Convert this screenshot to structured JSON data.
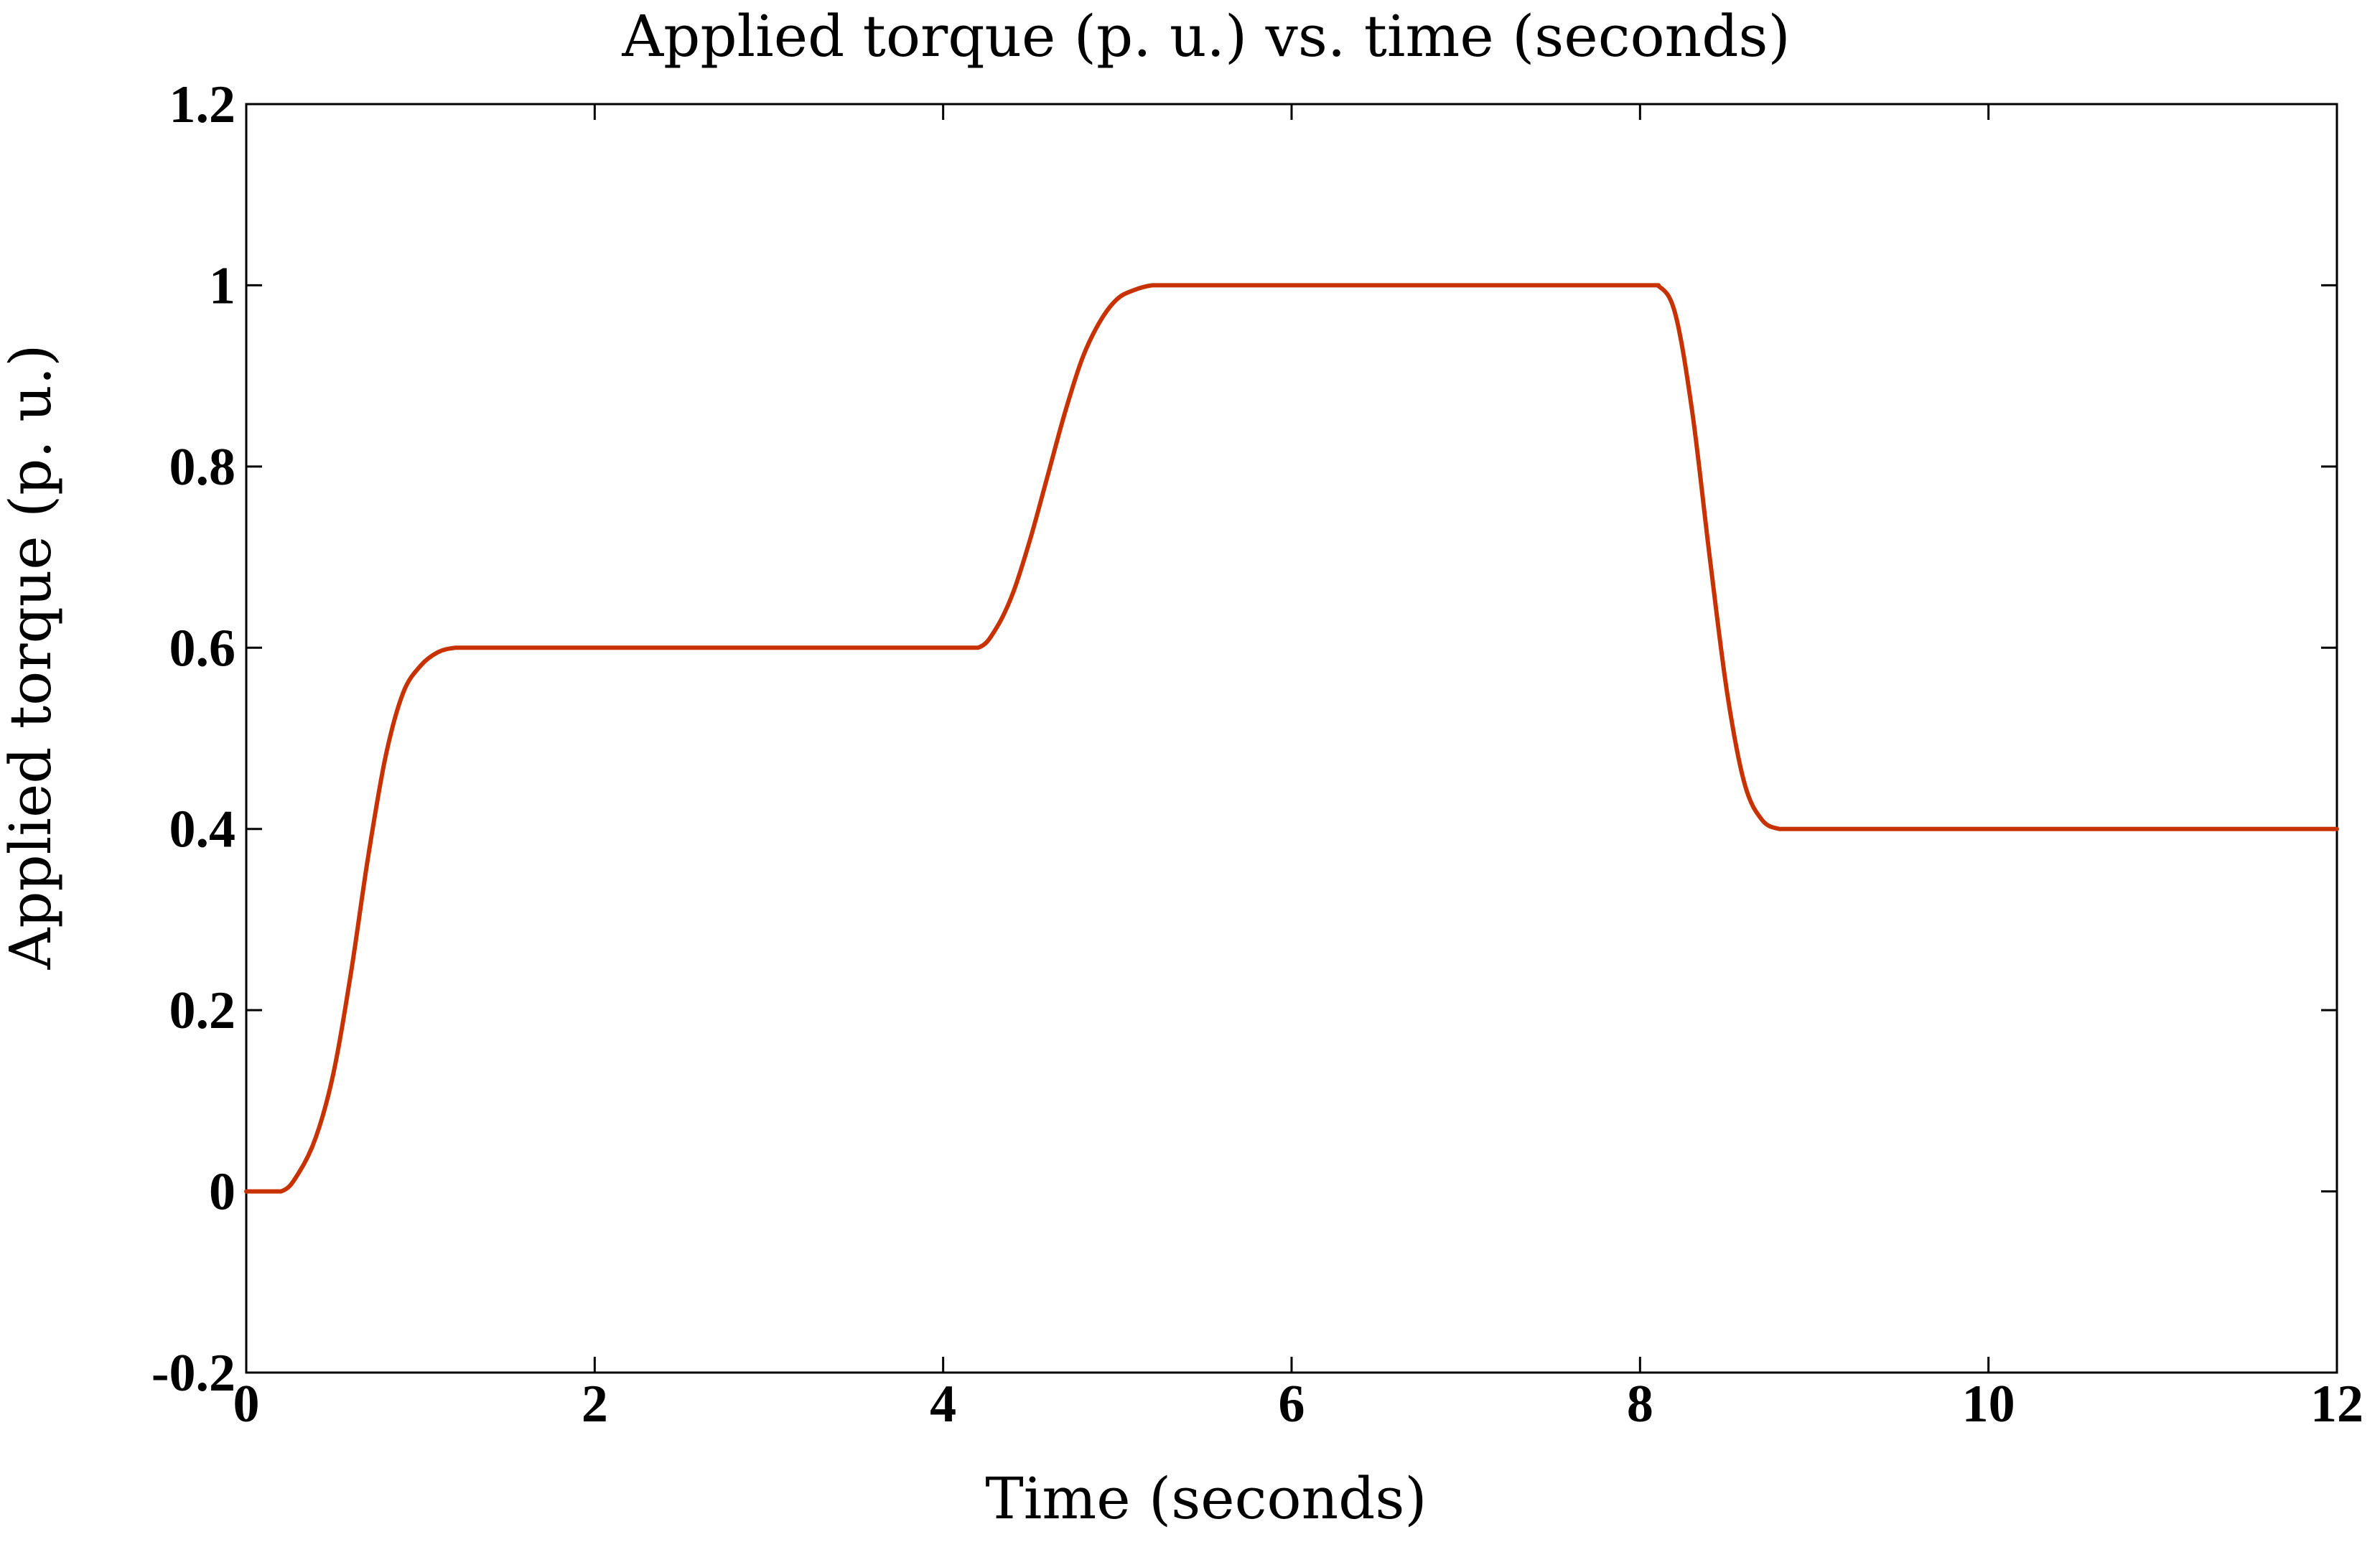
{
  "chart_data": {
    "type": "line",
    "title": "Applied torque (p. u.) vs. time (seconds)",
    "xlabel": "Time (seconds)",
    "ylabel": "Applied torque (p. u.)",
    "xlim": [
      0,
      12
    ],
    "ylim": [
      -0.2,
      1.2
    ],
    "x_ticks": [
      0,
      2,
      4,
      6,
      8,
      10,
      12
    ],
    "x_tick_labels": [
      "0",
      "2",
      "4",
      "6",
      "8",
      "10",
      "12"
    ],
    "y_ticks": [
      -0.2,
      0,
      0.2,
      0.4,
      0.6,
      0.8,
      1,
      1.2
    ],
    "y_tick_labels": [
      "-0.2",
      "0",
      "0.2",
      "0.4",
      "0.6",
      "0.8",
      "1",
      "1.2"
    ],
    "grid": false,
    "legend": "none",
    "line_color": "#c83200",
    "series": [
      {
        "x": [
          0,
          0.2,
          0.3,
          0.4,
          0.5,
          0.6,
          0.7,
          0.8,
          0.9,
          1.0,
          1.1,
          1.2,
          1.3,
          1.4,
          2,
          3,
          4,
          4.2,
          4.3,
          4.4,
          4.5,
          4.6,
          4.7,
          4.8,
          4.9,
          5.0,
          5.1,
          5.2,
          5.3,
          5.5,
          6,
          7,
          8,
          8.1,
          8.2,
          8.3,
          8.4,
          8.5,
          8.6,
          8.7,
          8.8,
          8.9,
          9,
          10,
          11,
          12
        ],
        "y": [
          0,
          0,
          0.02,
          0.06,
          0.13,
          0.24,
          0.37,
          0.48,
          0.55,
          0.58,
          0.595,
          0.6,
          0.6,
          0.6,
          0.6,
          0.6,
          0.6,
          0.6,
          0.62,
          0.66,
          0.72,
          0.79,
          0.86,
          0.92,
          0.96,
          0.985,
          0.995,
          1.0,
          1.0,
          1.0,
          1.0,
          1.0,
          1.0,
          1.0,
          0.97,
          0.86,
          0.7,
          0.55,
          0.45,
          0.41,
          0.4,
          0.4,
          0.4,
          0.4,
          0.4,
          0.4
        ]
      }
    ]
  }
}
